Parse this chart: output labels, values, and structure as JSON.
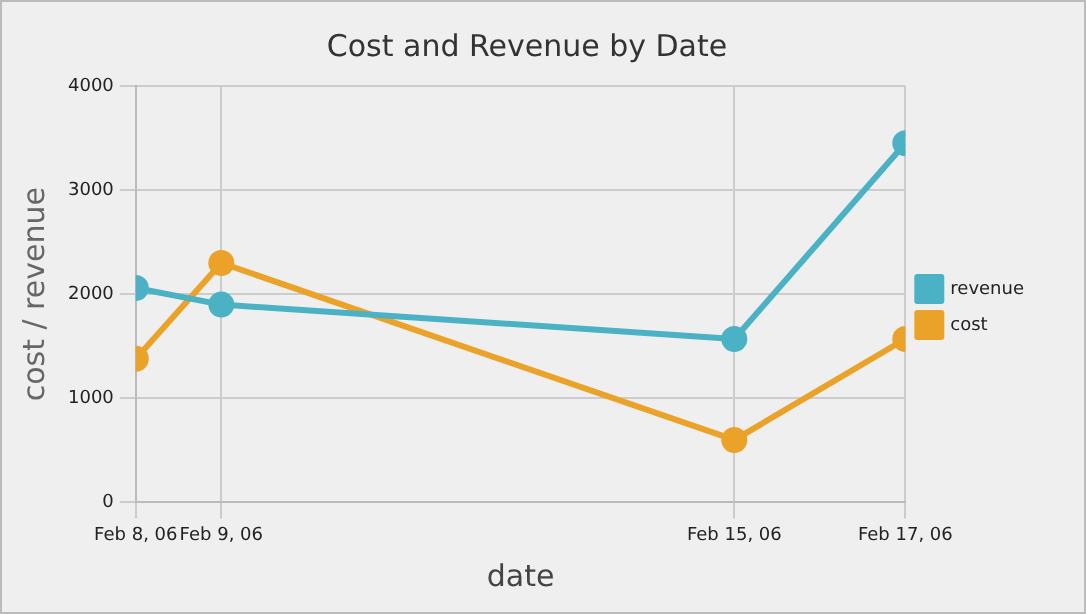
{
  "chart_data": {
    "type": "line",
    "title": "Cost and Revenue by Date",
    "xlabel": "date",
    "ylabel": "cost / revenue",
    "x": [
      "--02-08",
      "--02-09",
      "--02-15",
      "--02-17"
    ],
    "series": [
      {
        "name": "revenue",
        "color": "#4bb2c5",
        "values": [
          2060,
          1900,
          1570,
          3450
        ]
      },
      {
        "name": "cost",
        "color": "#eaa228",
        "values": [
          1380,
          2300,
          600,
          1570
        ]
      }
    ],
    "xlim": [
      "--02-08",
      "--02-17"
    ],
    "xticks": [
      {
        "value": "--02-08",
        "label": "Feb 8, 06"
      },
      {
        "value": "--02-09",
        "label": "Feb 9, 06"
      },
      {
        "value": "--02-15",
        "label": "Feb 15, 06"
      },
      {
        "value": "--02-17",
        "label": "Feb 17, 06"
      }
    ],
    "ylim": [
      0,
      4000
    ],
    "yticks": [
      0,
      1000,
      2000,
      3000,
      4000
    ],
    "grid": true,
    "legend": "right",
    "marker": "circle",
    "line_style": "solid"
  }
}
